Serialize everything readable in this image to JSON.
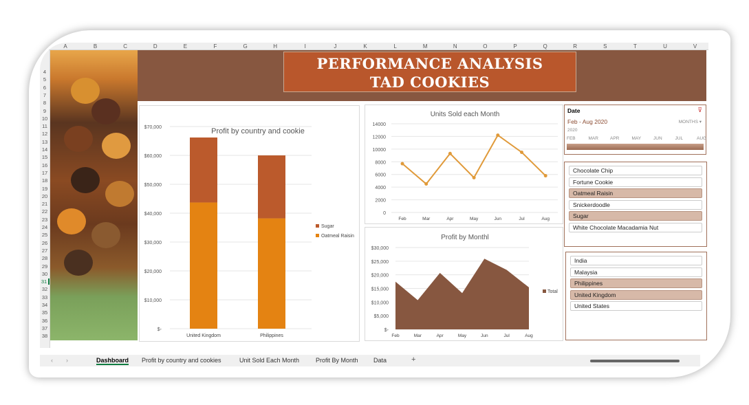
{
  "sheet": {
    "columns": [
      "A",
      "B",
      "C",
      "D",
      "E",
      "F",
      "G",
      "H",
      "I",
      "J",
      "K",
      "L",
      "M",
      "N",
      "O",
      "P",
      "Q",
      "R",
      "S",
      "T",
      "U",
      "V"
    ],
    "rows": [
      4,
      5,
      6,
      7,
      8,
      9,
      10,
      11,
      12,
      13,
      14,
      15,
      16,
      17,
      18,
      19,
      20,
      21,
      22,
      23,
      24,
      25,
      26,
      27,
      28,
      29,
      30,
      31,
      32,
      33,
      34,
      35,
      36,
      37,
      38
    ],
    "selected_row": 31
  },
  "header": {
    "title_line1": "PERFORMANCE ANALYSIS",
    "title_line2": "TAD COOKIES",
    "banner_color": "#875740",
    "title_color": "#b9572c"
  },
  "chart_data": [
    {
      "type": "bar",
      "stacked": true,
      "title": "Profit by country and cookie",
      "categories": [
        "United Kingdom",
        "Philippines"
      ],
      "series": [
        {
          "name": "Oatmeal Raisin",
          "values": [
            43700,
            38200
          ],
          "color": "#e48312"
        },
        {
          "name": "Sugar",
          "values": [
            22500,
            21800
          ],
          "color": "#bb5a2c"
        }
      ],
      "ylim": [
        0,
        70000
      ],
      "yticks": [
        "$-",
        "$10,000",
        "$20,000",
        "$30,000",
        "$40,000",
        "$50,000",
        "$60,000",
        "$70,000"
      ],
      "grid": true,
      "legend": "right"
    },
    {
      "type": "line",
      "title": "Units Sold each Month",
      "categories": [
        "Feb",
        "Mar",
        "Apr",
        "May",
        "Jun",
        "Jul",
        "Aug"
      ],
      "values": [
        7700,
        4500,
        9300,
        5500,
        12200,
        9500,
        5800
      ],
      "color": "#e09a3a",
      "ylim": [
        0,
        14000
      ],
      "yticks": [
        "0",
        "2000",
        "4000",
        "6000",
        "8000",
        "10000",
        "12000",
        "14000"
      ],
      "grid": true
    },
    {
      "type": "area",
      "title": "Profit by Monthl",
      "categories": [
        "Feb",
        "Mar",
        "Apr",
        "May",
        "Jun",
        "Jul",
        "Aug"
      ],
      "series": [
        {
          "name": "Total",
          "values": [
            17500,
            10700,
            20700,
            13300,
            25900,
            21800,
            15400
          ],
          "color": "#875740"
        }
      ],
      "ylim": [
        0,
        30000
      ],
      "yticks": [
        "$-",
        "$5,000",
        "$10,000",
        "$15,000",
        "$20,000",
        "$25,000",
        "$30,000"
      ],
      "grid": true,
      "legend": "right"
    }
  ],
  "date_slicer": {
    "title": "Date",
    "range": "Feb - Aug 2020",
    "level": "MONTHS",
    "year": "2020",
    "months": [
      "FEB",
      "MAR",
      "APR",
      "MAY",
      "JUN",
      "JUL",
      "AUG"
    ]
  },
  "cookie_slicer": {
    "items": [
      {
        "label": "Chocolate Chip",
        "selected": false
      },
      {
        "label": "Fortune Cookie",
        "selected": false
      },
      {
        "label": "Oatmeal Raisin",
        "selected": true
      },
      {
        "label": "Snickerdoodle",
        "selected": false
      },
      {
        "label": "Sugar",
        "selected": true
      },
      {
        "label": "White Chocolate Macadamia Nut",
        "selected": false
      }
    ]
  },
  "country_slicer": {
    "items": [
      {
        "label": "India",
        "selected": false
      },
      {
        "label": "Malaysia",
        "selected": false
      },
      {
        "label": "Philippines",
        "selected": true
      },
      {
        "label": "United Kingdom",
        "selected": true
      },
      {
        "label": "United States",
        "selected": false
      }
    ]
  },
  "tabs": {
    "items": [
      "Dashboard",
      "Profit by country and cookies",
      "Unit Sold Each Month",
      "Profit By Month",
      "Data"
    ],
    "active": "Dashboard",
    "add": "+",
    "prev": "‹",
    "next": "›"
  }
}
